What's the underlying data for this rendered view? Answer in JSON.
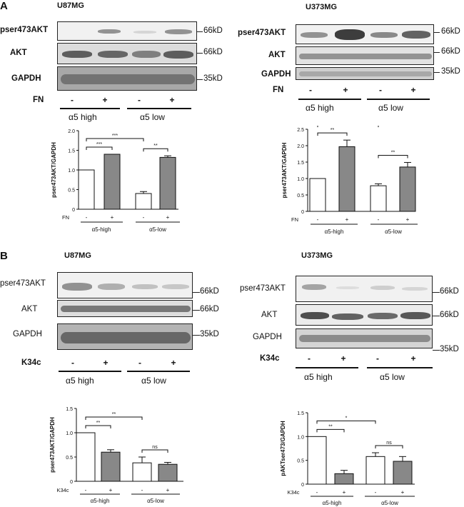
{
  "panels": [
    {
      "letter": "A",
      "left": {
        "cell_line": "U87MG",
        "rows": [
          "pser473AKT",
          "AKT",
          "GAPDH"
        ],
        "kd": [
          "66kD",
          "66kD",
          "35kD"
        ],
        "treatment": "FN",
        "signs": [
          "-",
          "+",
          "-",
          "+"
        ],
        "groups": [
          "α5 high",
          "α5 low"
        ]
      },
      "right": {
        "cell_line": "U373MG",
        "rows": [
          "pser473AKT",
          "AKT",
          "GAPDH"
        ],
        "kd": [
          "66kD",
          "66kD",
          "35kD"
        ],
        "treatment": "FN",
        "signs": [
          "-",
          "+",
          "-",
          "+"
        ],
        "groups": [
          "α5 high",
          "α5 low"
        ]
      }
    },
    {
      "letter": "B",
      "left": {
        "cell_line": "U87MG",
        "rows": [
          "pser473AKT",
          "AKT",
          "GAPDH"
        ],
        "kd": [
          "66kD",
          "66kD",
          "35kD"
        ],
        "treatment": "K34c",
        "signs": [
          "-",
          "+",
          "-",
          "+"
        ],
        "groups": [
          "α5 high",
          "α5 low"
        ]
      },
      "right": {
        "cell_line": "U373MG",
        "rows": [
          "pser473AKT",
          "AKT",
          "GAPDH"
        ],
        "kd": [
          "66kD",
          "66kD",
          "35kD"
        ],
        "treatment": "K34c",
        "signs": [
          "-",
          "+",
          "-",
          "+"
        ],
        "groups": [
          "α5 high",
          "α5 low"
        ]
      }
    }
  ],
  "chart_data": [
    {
      "type": "bar",
      "ylabel": "pser473AKT/GAPDH",
      "ylim": [
        0,
        2.0
      ],
      "yticks": [
        "0",
        "0.5",
        "1.0",
        "1.5",
        "2.0"
      ],
      "values": [
        1.0,
        1.4,
        0.4,
        1.32
      ],
      "errors": [
        0,
        0.0,
        0.05,
        0.04
      ],
      "treatment_label": "FN",
      "signs": [
        "-",
        "+",
        "-",
        "+"
      ],
      "groups": [
        "α5-high",
        "α5-low"
      ],
      "fills": [
        "#ffffff",
        "#888888",
        "#ffffff",
        "#888888"
      ],
      "brackets": [
        {
          "from": 0,
          "to": 1,
          "label": "***"
        },
        {
          "from": 0,
          "to": 2,
          "label": "***"
        },
        {
          "from": 2,
          "to": 3,
          "label": "**"
        }
      ]
    },
    {
      "type": "bar",
      "ylabel": "pser473AKT/GAPDH",
      "ylim": [
        0,
        2.5
      ],
      "yticks": [
        "0",
        "0.5",
        "1.0",
        "1.5",
        "2.0",
        "2.5"
      ],
      "values": [
        1.0,
        1.97,
        0.78,
        1.35
      ],
      "errors": [
        0,
        0.2,
        0.06,
        0.14
      ],
      "treatment_label": "FN",
      "signs": [
        "-",
        "+",
        "-",
        "+"
      ],
      "groups": [
        "α5-high",
        "α5-low"
      ],
      "fills": [
        "#ffffff",
        "#888888",
        "#ffffff",
        "#888888"
      ],
      "brackets": [
        {
          "from": 0,
          "to": 1,
          "label": "**"
        },
        {
          "from": 0,
          "to": 2,
          "label": "*"
        },
        {
          "from": 2,
          "to": 3,
          "label": "**"
        }
      ]
    },
    {
      "type": "bar",
      "ylabel": "pser473AKT/GAPDH",
      "ylim": [
        0,
        1.5
      ],
      "yticks": [
        "0",
        "0.5",
        "1.0",
        "1.5"
      ],
      "values": [
        1.0,
        0.6,
        0.38,
        0.35
      ],
      "errors": [
        0,
        0.05,
        0.12,
        0.04
      ],
      "treatment_label": "K34c",
      "signs": [
        "-",
        "+",
        "-",
        "+"
      ],
      "groups": [
        "α5-high",
        "α5-low"
      ],
      "fills": [
        "#ffffff",
        "#888888",
        "#ffffff",
        "#888888"
      ],
      "brackets": [
        {
          "from": 0,
          "to": 1,
          "label": "**"
        },
        {
          "from": 0,
          "to": 2,
          "label": "**"
        },
        {
          "from": 2,
          "to": 3,
          "label": "ns"
        }
      ]
    },
    {
      "type": "bar",
      "ylabel": "pAKTser473/GAPDH",
      "ylim": [
        0,
        1.5
      ],
      "yticks": [
        "0",
        "0.5",
        "1.0",
        "1.5"
      ],
      "values": [
        1.0,
        0.22,
        0.58,
        0.48
      ],
      "errors": [
        0,
        0.07,
        0.08,
        0.1
      ],
      "treatment_label": "K34c",
      "signs": [
        "-",
        "+",
        "-",
        "+"
      ],
      "groups": [
        "α5-high",
        "α5-low"
      ],
      "fills": [
        "#ffffff",
        "#888888",
        "#ffffff",
        "#888888"
      ],
      "brackets": [
        {
          "from": 0,
          "to": 1,
          "label": "**"
        },
        {
          "from": 0,
          "to": 2,
          "label": "*"
        },
        {
          "from": 2,
          "to": 3,
          "label": "ns"
        }
      ]
    }
  ]
}
